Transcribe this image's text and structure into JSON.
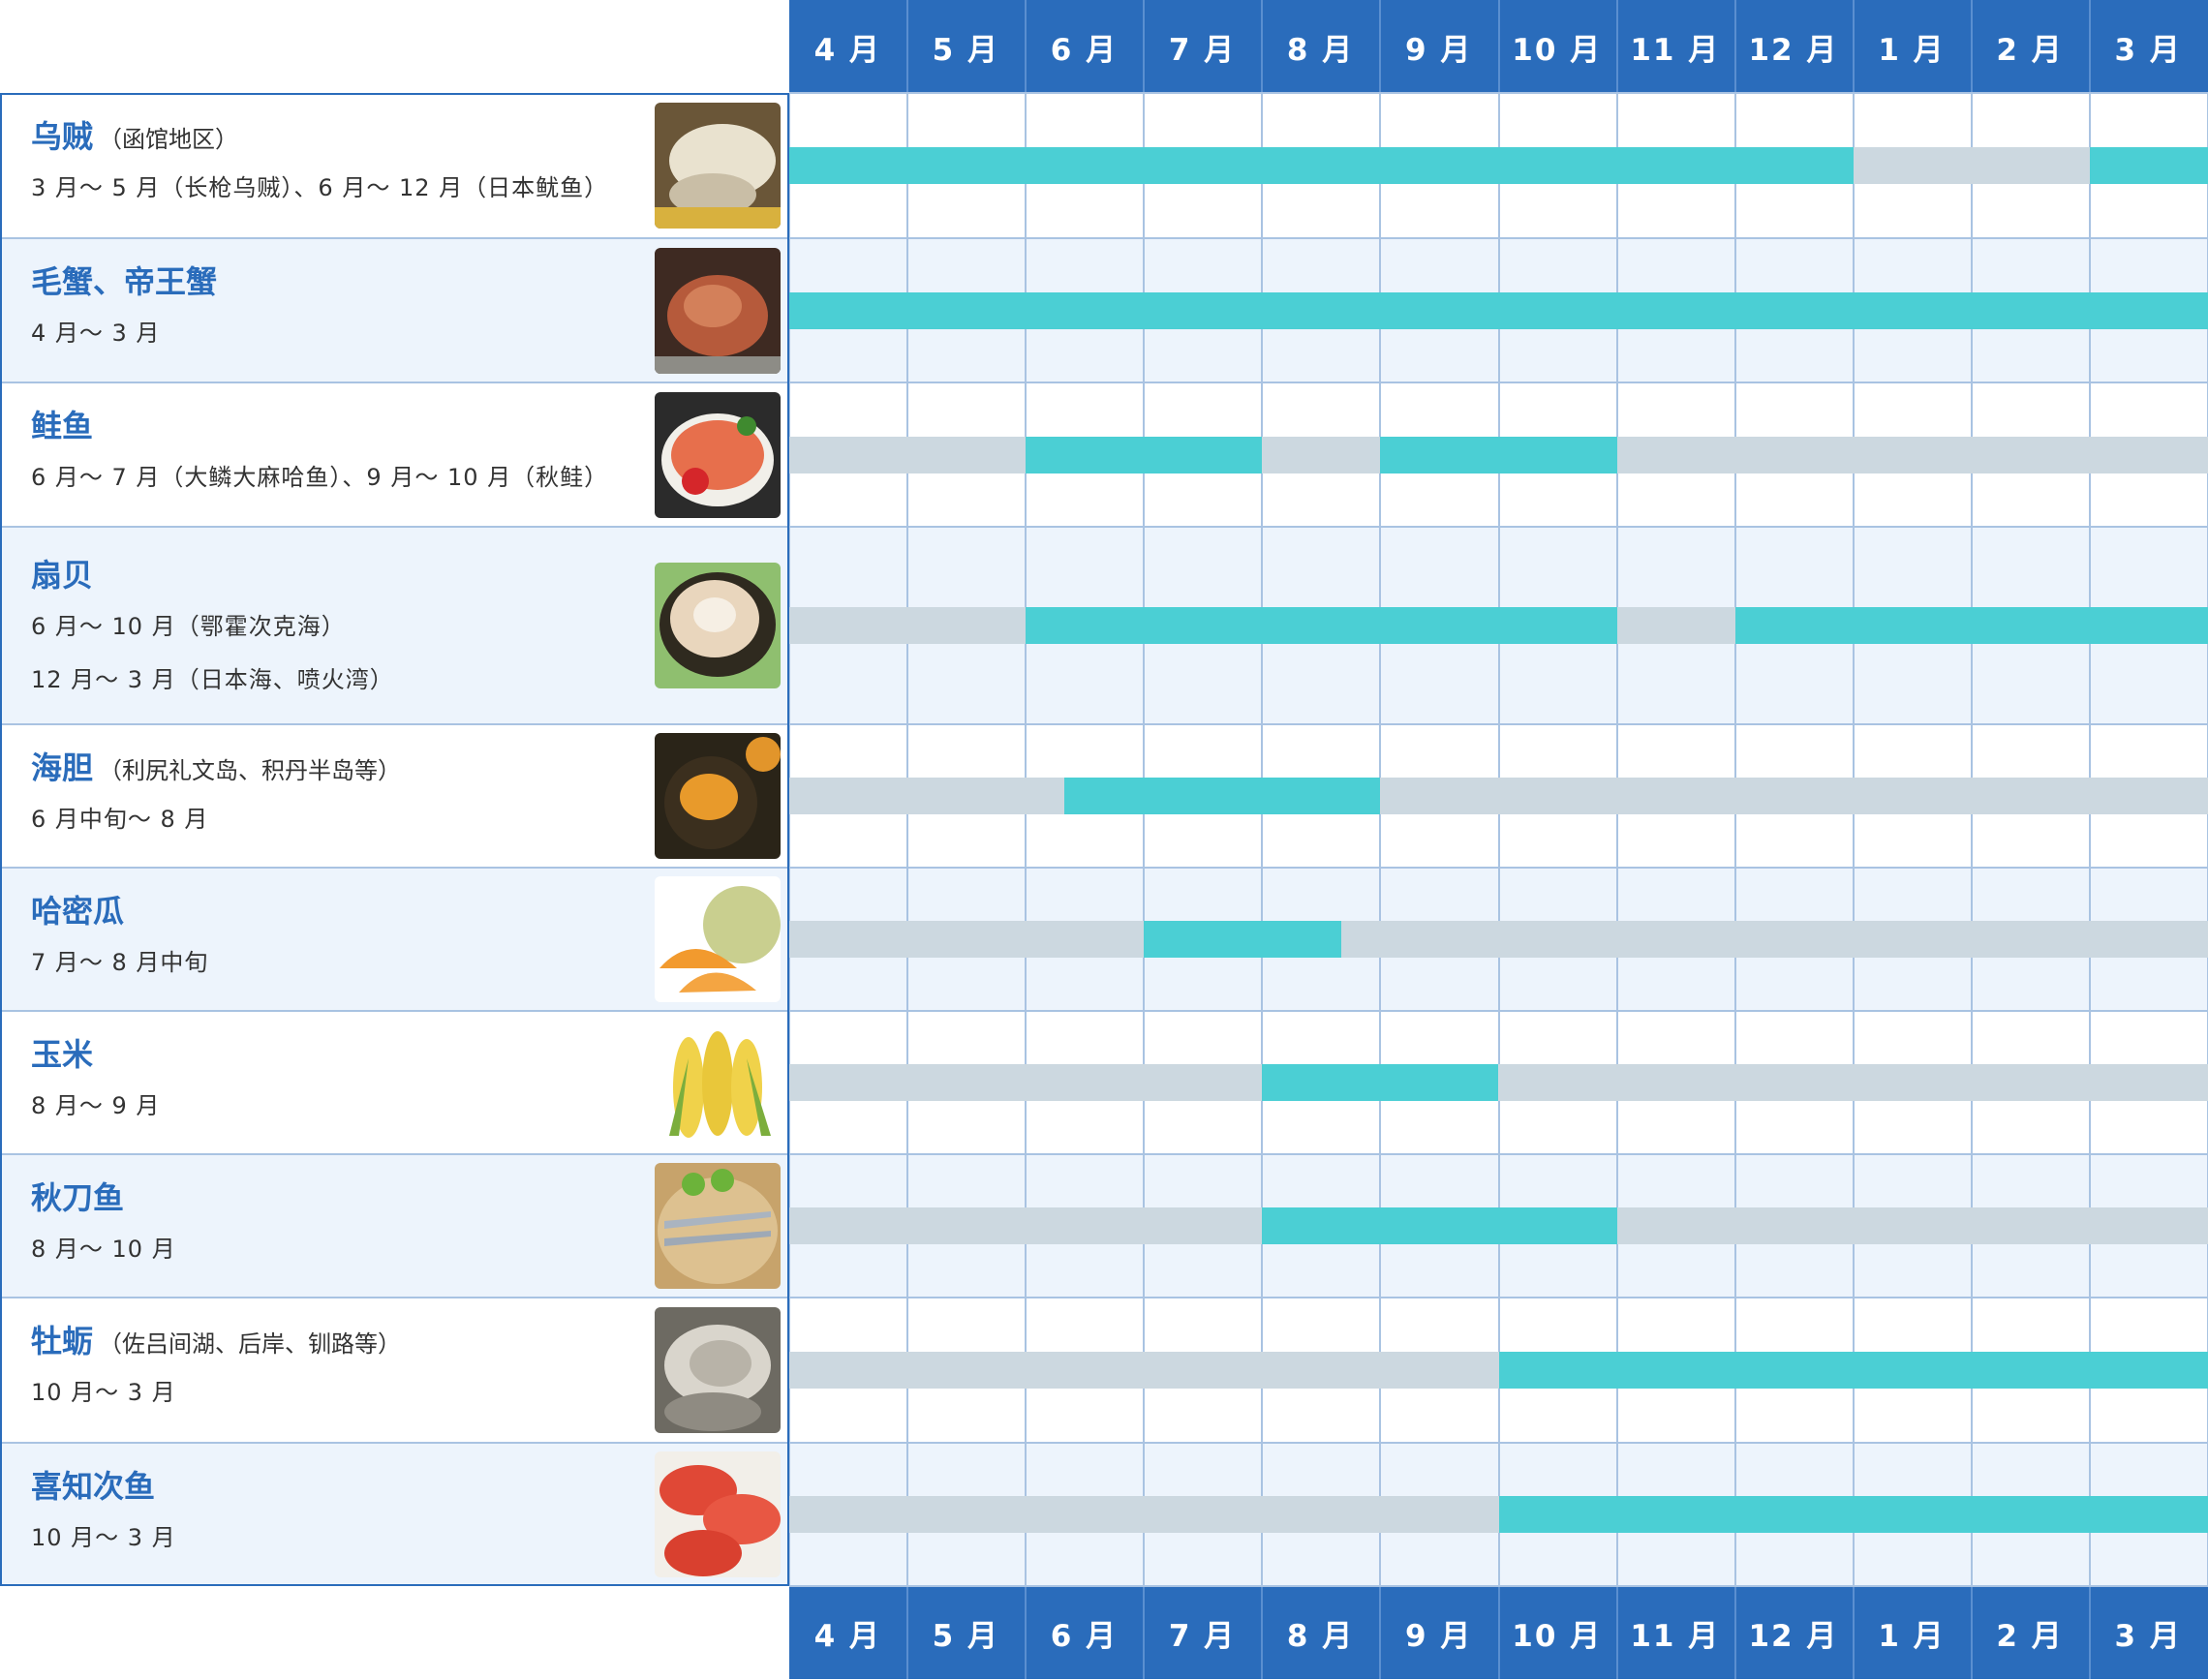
{
  "chart_data": {
    "type": "gantt",
    "months": [
      "4 月",
      "5 月",
      "6 月",
      "7 月",
      "8 月",
      "9 月",
      "10 月",
      "11 月",
      "12 月",
      "1 月",
      "2 月",
      "3 月"
    ],
    "colors": {
      "in_season": "#4bcfd4",
      "off_season": "#ccd8e0",
      "header": "#2a6cbb",
      "title": "#2a6cbb",
      "alt_row": "#edf4fc"
    },
    "items": [
      {
        "name": "乌贼",
        "note": "（函馆地区）",
        "periods": [
          "3 月～ 5 月（长枪乌贼）、6 月～ 12 月（日本鱿鱼）"
        ],
        "image": "squid-photo",
        "season": [
          [
            0,
            9
          ],
          [
            11,
            12
          ]
        ]
      },
      {
        "name": "毛蟹、帝王蟹",
        "note": "",
        "periods": [
          "4 月～ 3 月"
        ],
        "image": "crab-photo",
        "season": [
          [
            0,
            12
          ]
        ]
      },
      {
        "name": "鲑鱼",
        "note": "",
        "periods": [
          "6 月～ 7 月（大鳞大麻哈鱼）、9 月～ 10 月（秋鲑）"
        ],
        "image": "salmon-roe-bowl-photo",
        "season": [
          [
            2,
            4
          ],
          [
            5,
            7
          ]
        ]
      },
      {
        "name": "扇贝",
        "note": "",
        "periods": [
          "6 月～ 10 月（鄂霍次克海）",
          "12 月～ 3 月（日本海、喷火湾）"
        ],
        "image": "scallop-photo",
        "season": [
          [
            2,
            7
          ],
          [
            8,
            12
          ]
        ]
      },
      {
        "name": "海胆",
        "note": "（利尻礼文岛、积丹半岛等）",
        "periods": [
          "6 月中旬～ 8 月"
        ],
        "image": "sea-urchin-photo",
        "season": [
          [
            2.33,
            5
          ]
        ]
      },
      {
        "name": "哈密瓜",
        "note": "",
        "periods": [
          "7 月～ 8 月中旬"
        ],
        "image": "melon-photo",
        "season": [
          [
            3,
            4.67
          ]
        ]
      },
      {
        "name": "玉米",
        "note": "",
        "periods": [
          "8 月～ 9 月"
        ],
        "image": "corn-photo",
        "season": [
          [
            4,
            6
          ]
        ]
      },
      {
        "name": "秋刀鱼",
        "note": "",
        "periods": [
          "8 月～ 10 月"
        ],
        "image": "saury-photo",
        "season": [
          [
            4,
            7
          ]
        ]
      },
      {
        "name": "牡蛎",
        "note": "（佐吕间湖、后岸、钏路等）",
        "periods": [
          "10 月～ 3 月"
        ],
        "image": "oyster-photo",
        "season": [
          [
            6,
            12
          ]
        ]
      },
      {
        "name": "喜知次鱼",
        "note": "",
        "periods": [
          "10 月～ 3 月"
        ],
        "image": "kichiji-fish-photo",
        "season": [
          [
            6,
            12
          ]
        ]
      }
    ]
  }
}
